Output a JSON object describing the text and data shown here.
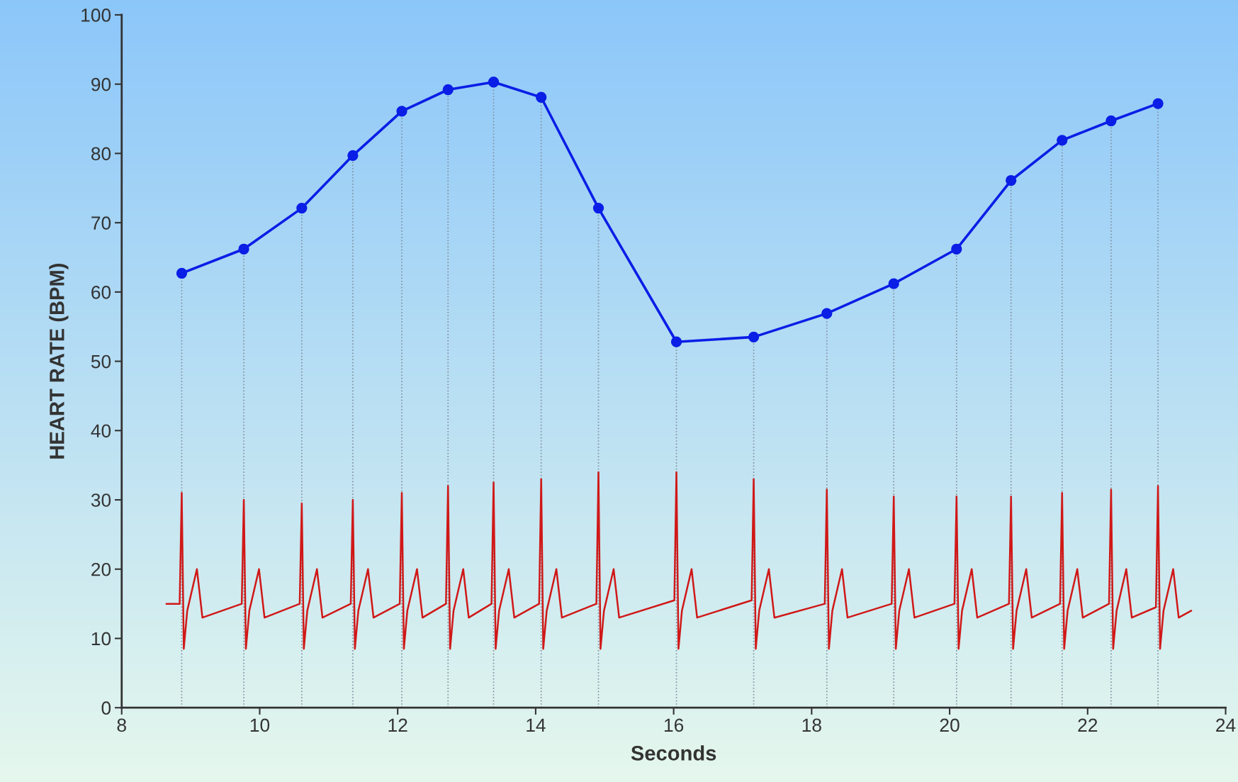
{
  "chart_data": {
    "type": "line",
    "xlabel": "Seconds",
    "ylabel": "HEART RATE (BPM)",
    "xlim": [
      8,
      24
    ],
    "xticks": [
      8,
      10,
      12,
      14,
      16,
      18,
      20,
      22,
      24
    ],
    "ylim": [
      0,
      100
    ],
    "yticks": [
      0,
      10,
      20,
      30,
      40,
      50,
      60,
      70,
      80,
      90,
      100
    ],
    "grid": false,
    "series": [
      {
        "color": "#0a1ee6",
        "marker": "circle",
        "x": [
          8.87,
          9.77,
          10.61,
          11.35,
          12.06,
          12.73,
          13.39,
          14.08,
          14.91,
          16.04,
          17.16,
          18.22,
          19.19,
          20.1,
          20.89,
          21.63,
          22.34,
          23.02
        ],
        "values": [
          62.7,
          66.2,
          72.1,
          79.7,
          86.1,
          89.2,
          90.3,
          88.1,
          72.1,
          52.8,
          53.5,
          56.9,
          61.2,
          66.2,
          76.1,
          81.9,
          84.7,
          87.2
        ]
      },
      {
        "color": "#d01818",
        "marker": "none",
        "x": [
          8.65,
          8.84,
          8.87,
          8.9,
          8.95,
          9.09,
          9.17,
          9.74,
          9.77,
          9.8,
          9.85,
          9.99,
          10.07,
          10.58,
          10.61,
          10.64,
          10.69,
          10.83,
          10.91,
          11.32,
          11.35,
          11.38,
          11.43,
          11.57,
          11.65,
          12.03,
          12.06,
          12.09,
          12.14,
          12.28,
          12.36,
          12.7,
          12.73,
          12.76,
          12.81,
          12.95,
          13.03,
          13.36,
          13.39,
          13.42,
          13.47,
          13.61,
          13.69,
          14.05,
          14.08,
          14.11,
          14.16,
          14.3,
          14.38,
          14.88,
          14.91,
          14.94,
          14.99,
          15.13,
          15.21,
          16.01,
          16.04,
          16.07,
          16.12,
          16.26,
          16.34,
          17.13,
          17.16,
          17.19,
          17.24,
          17.38,
          17.46,
          18.19,
          18.22,
          18.25,
          18.3,
          18.44,
          18.52,
          19.16,
          19.19,
          19.22,
          19.27,
          19.41,
          19.49,
          20.07,
          20.1,
          20.13,
          20.18,
          20.32,
          20.4,
          20.86,
          20.89,
          20.92,
          20.97,
          21.11,
          21.19,
          21.6,
          21.63,
          21.66,
          21.71,
          21.85,
          21.93,
          22.31,
          22.34,
          22.37,
          22.42,
          22.56,
          22.64,
          22.99,
          23.02,
          23.05,
          23.1,
          23.24,
          23.32,
          23.5
        ],
        "values": [
          15,
          15,
          31,
          8.5,
          14,
          20,
          13,
          15,
          30,
          8.5,
          14,
          20,
          13,
          15,
          29.5,
          8.5,
          14,
          20,
          13,
          15,
          30,
          8.5,
          14,
          20,
          13,
          15,
          31,
          8.5,
          14,
          20,
          13,
          15,
          32,
          8.5,
          14,
          20,
          13,
          15,
          32.5,
          8.5,
          14,
          20,
          13,
          15,
          33,
          8.5,
          14,
          20,
          13,
          15,
          34,
          8.5,
          14,
          20,
          13,
          15.5,
          34,
          8.5,
          14,
          20,
          13,
          15.5,
          33,
          8.5,
          14,
          20,
          13,
          15,
          31.5,
          8.5,
          14,
          20,
          13,
          15,
          30.5,
          8.5,
          14,
          20,
          13,
          15,
          30.5,
          8.5,
          14,
          20,
          13,
          15,
          30.5,
          8.5,
          14,
          20,
          13,
          15,
          31,
          8.5,
          14,
          20,
          13,
          15,
          31.5,
          8.5,
          14,
          20,
          13,
          14.5,
          32,
          8.5,
          14,
          20,
          13,
          14
        ]
      }
    ],
    "ref_lines": [
      {
        "axis": "x",
        "value": 8.87,
        "color": "#8090a0",
        "line_style": "dotted"
      },
      {
        "axis": "x",
        "value": 9.77,
        "color": "#8090a0",
        "line_style": "dotted"
      },
      {
        "axis": "x",
        "value": 10.61,
        "color": "#8090a0",
        "line_style": "dotted"
      },
      {
        "axis": "x",
        "value": 11.35,
        "color": "#8090a0",
        "line_style": "dotted"
      },
      {
        "axis": "x",
        "value": 12.06,
        "color": "#8090a0",
        "line_style": "dotted"
      },
      {
        "axis": "x",
        "value": 12.73,
        "color": "#8090a0",
        "line_style": "dotted"
      },
      {
        "axis": "x",
        "value": 13.39,
        "color": "#8090a0",
        "line_style": "dotted"
      },
      {
        "axis": "x",
        "value": 14.08,
        "color": "#8090a0",
        "line_style": "dotted"
      },
      {
        "axis": "x",
        "value": 14.91,
        "color": "#8090a0",
        "line_style": "dotted"
      },
      {
        "axis": "x",
        "value": 16.04,
        "color": "#8090a0",
        "line_style": "dotted"
      },
      {
        "axis": "x",
        "value": 17.16,
        "color": "#8090a0",
        "line_style": "dotted"
      },
      {
        "axis": "x",
        "value": 18.22,
        "color": "#8090a0",
        "line_style": "dotted"
      },
      {
        "axis": "x",
        "value": 19.19,
        "color": "#8090a0",
        "line_style": "dotted"
      },
      {
        "axis": "x",
        "value": 20.1,
        "color": "#8090a0",
        "line_style": "dotted"
      },
      {
        "axis": "x",
        "value": 20.89,
        "color": "#8090a0",
        "line_style": "dotted"
      },
      {
        "axis": "x",
        "value": 21.63,
        "color": "#8090a0",
        "line_style": "dotted"
      },
      {
        "axis": "x",
        "value": 22.34,
        "color": "#8090a0",
        "line_style": "dotted"
      },
      {
        "axis": "x",
        "value": 23.02,
        "color": "#8090a0",
        "line_style": "dotted"
      }
    ]
  }
}
